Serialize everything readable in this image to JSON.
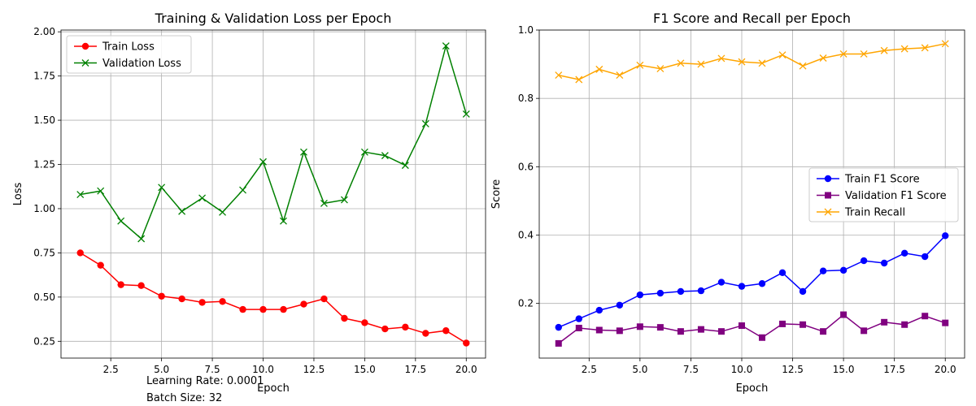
{
  "footnotes": {
    "learning_rate": "Learning Rate: 0.0001",
    "batch_size": "Batch Size: 32"
  },
  "chart_data": [
    {
      "type": "line",
      "title": "Training & Validation Loss per Epoch",
      "xlabel": "Epoch",
      "ylabel": "Loss",
      "xlim": [
        0.05,
        20.95
      ],
      "ylim": [
        0.155,
        2.01
      ],
      "xticks": [
        2.5,
        5.0,
        7.5,
        10.0,
        12.5,
        15.0,
        17.5,
        20.0
      ],
      "xtick_labels": [
        "2.5",
        "5.0",
        "7.5",
        "10.0",
        "12.5",
        "15.0",
        "17.5",
        "20.0"
      ],
      "yticks": [
        0.25,
        0.5,
        0.75,
        1.0,
        1.25,
        1.5,
        1.75,
        2.0
      ],
      "ytick_labels": [
        "0.25",
        "0.50",
        "0.75",
        "1.00",
        "1.25",
        "1.50",
        "1.75",
        "2.00"
      ],
      "grid": true,
      "legend_position": "upper-left",
      "x": [
        1,
        2,
        3,
        4,
        5,
        6,
        7,
        8,
        9,
        10,
        11,
        12,
        13,
        14,
        15,
        16,
        17,
        18,
        19,
        20
      ],
      "series": [
        {
          "name": "Train Loss",
          "color": "#ff0000",
          "marker": "circle",
          "values": [
            0.75,
            0.68,
            0.57,
            0.565,
            0.505,
            0.49,
            0.47,
            0.475,
            0.43,
            0.43,
            0.43,
            0.46,
            0.49,
            0.38,
            0.355,
            0.32,
            0.33,
            0.295,
            0.31,
            0.24
          ]
        },
        {
          "name": "Validation Loss",
          "color": "#008000",
          "marker": "x",
          "values": [
            1.08,
            1.1,
            0.93,
            0.83,
            1.12,
            0.985,
            1.06,
            0.98,
            1.105,
            1.265,
            0.93,
            1.32,
            1.03,
            1.05,
            1.32,
            1.3,
            1.245,
            1.48,
            1.92,
            1.535
          ]
        }
      ]
    },
    {
      "type": "line",
      "title": "F1 Score and Recall per Epoch",
      "xlabel": "Epoch",
      "ylabel": "Score",
      "xlim": [
        0.05,
        20.95
      ],
      "ylim": [
        0.04,
        1.0
      ],
      "xticks": [
        2.5,
        5.0,
        7.5,
        10.0,
        12.5,
        15.0,
        17.5,
        20.0
      ],
      "xtick_labels": [
        "2.5",
        "5.0",
        "7.5",
        "10.0",
        "12.5",
        "15.0",
        "17.5",
        "20.0"
      ],
      "yticks": [
        0.2,
        0.4,
        0.6,
        0.8,
        1.0
      ],
      "ytick_labels": [
        "0.2",
        "0.4",
        "0.6",
        "0.8",
        "1.0"
      ],
      "grid": true,
      "legend_position": "center-right",
      "x": [
        1,
        2,
        3,
        4,
        5,
        6,
        7,
        8,
        9,
        10,
        11,
        12,
        13,
        14,
        15,
        16,
        17,
        18,
        19,
        20
      ],
      "series": [
        {
          "name": "Train F1 Score",
          "color": "#0000ff",
          "marker": "circle",
          "values": [
            0.13,
            0.155,
            0.18,
            0.195,
            0.225,
            0.23,
            0.235,
            0.237,
            0.262,
            0.25,
            0.258,
            0.29,
            0.235,
            0.295,
            0.297,
            0.325,
            0.318,
            0.347,
            0.337,
            0.398
          ]
        },
        {
          "name": "Validation F1 Score",
          "color": "#800080",
          "marker": "square",
          "values": [
            0.083,
            0.128,
            0.122,
            0.12,
            0.132,
            0.13,
            0.118,
            0.124,
            0.118,
            0.135,
            0.1,
            0.14,
            0.138,
            0.118,
            0.167,
            0.12,
            0.145,
            0.138,
            0.163,
            0.143
          ]
        },
        {
          "name": "Train Recall",
          "color": "#ffa500",
          "marker": "x",
          "values": [
            0.868,
            0.855,
            0.885,
            0.868,
            0.897,
            0.887,
            0.903,
            0.9,
            0.917,
            0.907,
            0.903,
            0.927,
            0.895,
            0.918,
            0.93,
            0.93,
            0.94,
            0.945,
            0.948,
            0.96
          ]
        }
      ]
    }
  ]
}
